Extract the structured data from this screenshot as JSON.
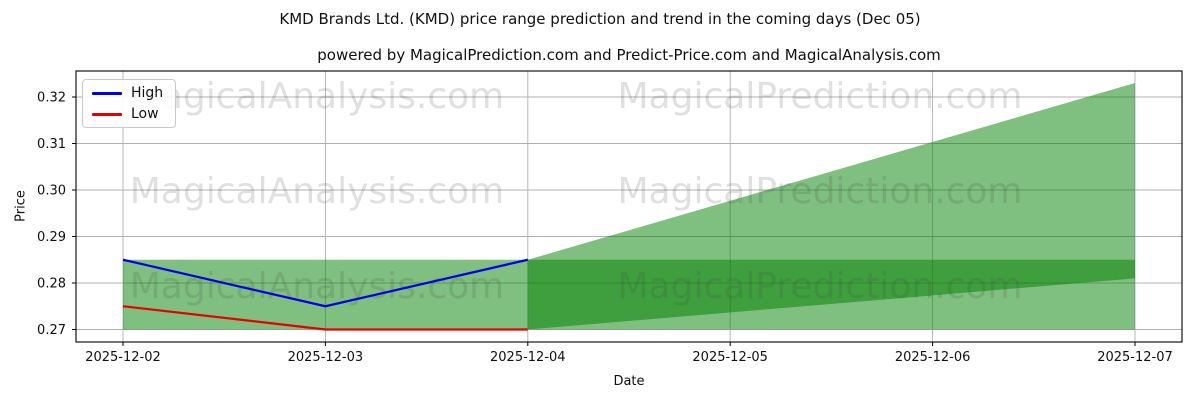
{
  "figure": {
    "title": "KMD Brands Ltd. (KMD) price range prediction and trend in the coming days (Dec 05)",
    "subtitle": "powered by MagicalPrediction.com and Predict-Price.com and MagicalAnalysis.com"
  },
  "chart_data": {
    "type": "line",
    "title": "KMD Brands Ltd. (KMD) price range prediction and trend in the coming days (Dec 05)",
    "subtitle": "powered by MagicalPrediction.com and Predict-Price.com and MagicalAnalysis.com",
    "xlabel": "Date",
    "ylabel": "Price",
    "categories": [
      "2025-12-02",
      "2025-12-03",
      "2025-12-04",
      "2025-12-05",
      "2025-12-06",
      "2025-12-07"
    ],
    "y_ticks": [
      "0.27",
      "0.28",
      "0.29",
      "0.30",
      "0.31",
      "0.32"
    ],
    "ylim": [
      0.26731,
      0.32559
    ],
    "grid": true,
    "grid_color": "#b0b0b0",
    "legend_position": "upper-left",
    "series": [
      {
        "name": "High",
        "color": "#0000e6",
        "x": [
          "2025-12-02",
          "2025-12-03",
          "2025-12-04"
        ],
        "values": [
          0.285,
          0.275,
          0.285
        ]
      },
      {
        "name": "Low",
        "color": "#e60000",
        "x": [
          "2025-12-02",
          "2025-12-03",
          "2025-12-04"
        ],
        "values": [
          0.275,
          0.27,
          0.27
        ]
      }
    ],
    "bands": [
      {
        "name": "historical-range",
        "x": [
          "2025-12-02",
          "2025-12-04"
        ],
        "upper": [
          0.285,
          0.285
        ],
        "lower": [
          0.27,
          0.27
        ],
        "color": "#008000",
        "opacity": 0.5
      },
      {
        "name": "forecast-envelope",
        "x": [
          "2025-12-04",
          "2025-12-07"
        ],
        "upper": [
          0.285,
          0.323
        ],
        "lower": [
          0.27,
          0.27
        ],
        "color": "#008000",
        "opacity": 0.5
      },
      {
        "name": "forecast-core",
        "x": [
          "2025-12-04",
          "2025-12-07"
        ],
        "upper": [
          0.285,
          0.285
        ],
        "lower": [
          0.27,
          0.281
        ],
        "color": "#008000",
        "opacity": 0.5
      }
    ],
    "watermarks": [
      "MagicalAnalysis.com",
      "MagicalPrediction.com"
    ]
  }
}
